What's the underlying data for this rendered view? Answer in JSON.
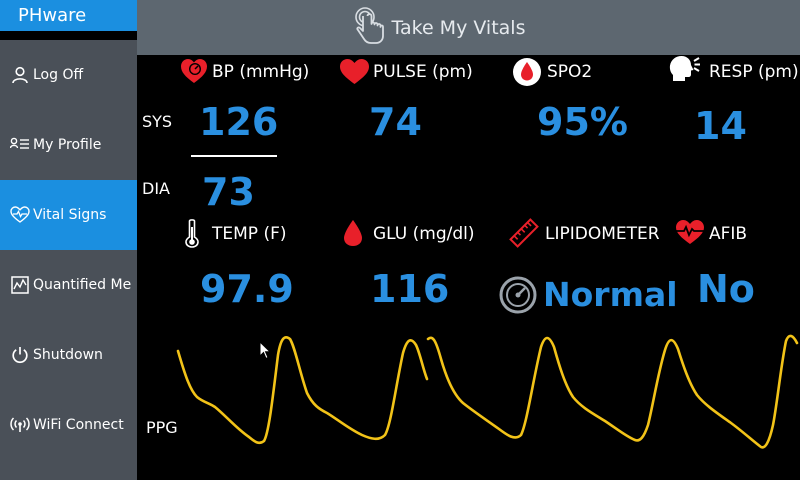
{
  "app": {
    "brand": "PHware"
  },
  "header": {
    "title": "Take My Vitals",
    "icon": "touch-hand-icon"
  },
  "sidebar": {
    "items": [
      {
        "label": "Log Off",
        "icon": "user-icon"
      },
      {
        "label": "My Profile",
        "icon": "profile-list-icon"
      },
      {
        "label": "Vital Signs",
        "icon": "heart-pulse-icon",
        "active": true
      },
      {
        "label": "Quantified Me",
        "icon": "chart-icon"
      },
      {
        "label": "Shutdown",
        "icon": "power-icon"
      },
      {
        "label": "WiFi Connect",
        "icon": "wifi-icon"
      }
    ]
  },
  "vitals": {
    "bp": {
      "label": "BP (mmHg)",
      "sys_label": "SYS",
      "dia_label": "DIA",
      "sys": "126",
      "dia": "73"
    },
    "pulse": {
      "label": "PULSE (pm)",
      "value": "74"
    },
    "spo2": {
      "label": "SPO2",
      "value": "95%"
    },
    "resp": {
      "label": "RESP (pm)",
      "value": "14"
    },
    "temp": {
      "label": "TEMP (F)",
      "value": "97.9"
    },
    "glu": {
      "label": "GLU  (mg/dl)",
      "value": "116"
    },
    "lipid": {
      "label": "LIPIDOMETER",
      "value": "Normal"
    },
    "afib": {
      "label": "AFIB",
      "value": "No"
    }
  },
  "ppg": {
    "label": "PPG"
  },
  "colors": {
    "accent": "#1b8fe0",
    "value": "#2a8fe0",
    "sidebar": "#4a5058",
    "header": "#5d6770",
    "icon_red": "#e8202a",
    "waveform": "#f2c318"
  }
}
